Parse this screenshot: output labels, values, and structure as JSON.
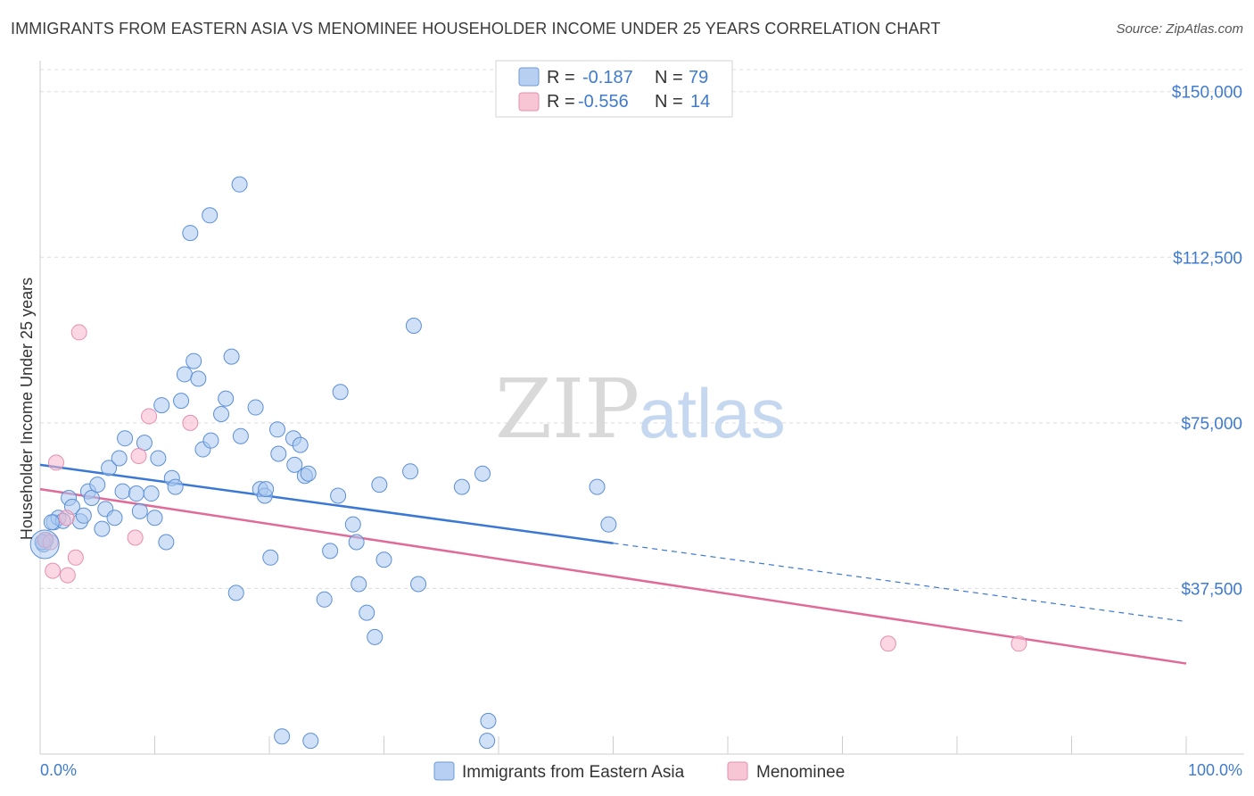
{
  "title": "IMMIGRANTS FROM EASTERN ASIA VS MENOMINEE HOUSEHOLDER INCOME UNDER 25 YEARS CORRELATION CHART",
  "source": "Source: ZipAtlas.com",
  "watermark": {
    "zip": "ZIP",
    "atlas": "atlas"
  },
  "colors": {
    "blue": "#3a78d4",
    "blue_fill": "#a9c8f0",
    "pink": "#e06a98",
    "pink_fill": "#f6b6cb",
    "axis_text": "#3f7bd0",
    "grid": "#dddddd"
  },
  "legend": {
    "rows": [
      {
        "r_label": "R =",
        "r_value": "-0.187",
        "n_label": "N =",
        "n_value": "79"
      },
      {
        "r_label": "R =",
        "r_value": "-0.556",
        "n_label": "N =",
        "n_value": "14"
      }
    ]
  },
  "bottom_legend": [
    "Immigrants from Eastern Asia",
    "Menominee"
  ],
  "chart_data": {
    "type": "scatter",
    "title": "IMMIGRANTS FROM EASTERN ASIA VS MENOMINEE HOUSEHOLDER INCOME UNDER 25 YEARS CORRELATION CHART",
    "xlabel": "",
    "ylabel": "Householder Income Under 25 years",
    "xlim": [
      0,
      100
    ],
    "ylim": [
      0,
      155000
    ],
    "x_tick_labels": [
      "0.0%",
      "100.0%"
    ],
    "y_ticks": [
      37500,
      75000,
      112500,
      150000
    ],
    "y_tick_labels": [
      "$37,500",
      "$75,000",
      "$112,500",
      "$150,000"
    ],
    "grid": true,
    "legend_position": "top-center",
    "series": [
      {
        "name": "Immigrants from Eastern Asia",
        "color": "#3a78d4",
        "points": [
          [
            0.3,
            47500
          ],
          [
            0.5,
            48500
          ],
          [
            1.2,
            52500
          ],
          [
            1.6,
            53500
          ],
          [
            2.0,
            52800
          ],
          [
            2.5,
            58000
          ],
          [
            2.8,
            56000
          ],
          [
            3.5,
            52700
          ],
          [
            3.8,
            54000
          ],
          [
            4.2,
            59500
          ],
          [
            4.5,
            58000
          ],
          [
            5.0,
            61000
          ],
          [
            5.4,
            51000
          ],
          [
            5.7,
            55500
          ],
          [
            6.0,
            64800
          ],
          [
            6.5,
            53500
          ],
          [
            6.9,
            67000
          ],
          [
            7.4,
            71500
          ],
          [
            7.2,
            59500
          ],
          [
            8.4,
            59000
          ],
          [
            8.7,
            55000
          ],
          [
            9.1,
            70500
          ],
          [
            9.7,
            59000
          ],
          [
            10.0,
            53500
          ],
          [
            10.3,
            67000
          ],
          [
            10.6,
            79000
          ],
          [
            11.0,
            48000
          ],
          [
            11.5,
            62500
          ],
          [
            11.8,
            60500
          ],
          [
            12.3,
            80000
          ],
          [
            12.6,
            86000
          ],
          [
            13.1,
            118000
          ],
          [
            13.4,
            89000
          ],
          [
            13.8,
            85000
          ],
          [
            14.2,
            69000
          ],
          [
            14.8,
            122000
          ],
          [
            14.9,
            71000
          ],
          [
            15.8,
            77000
          ],
          [
            16.2,
            80500
          ],
          [
            16.7,
            90000
          ],
          [
            17.1,
            36500
          ],
          [
            17.4,
            129000
          ],
          [
            17.5,
            72000
          ],
          [
            18.8,
            78500
          ],
          [
            19.2,
            60000
          ],
          [
            19.6,
            58500
          ],
          [
            19.7,
            60000
          ],
          [
            20.1,
            44500
          ],
          [
            20.7,
            73500
          ],
          [
            20.8,
            68000
          ],
          [
            21.1,
            4000
          ],
          [
            22.1,
            71500
          ],
          [
            22.2,
            65500
          ],
          [
            22.7,
            70000
          ],
          [
            23.1,
            63000
          ],
          [
            23.4,
            63500
          ],
          [
            23.6,
            3000
          ],
          [
            24.8,
            35000
          ],
          [
            25.3,
            46000
          ],
          [
            26.0,
            58500
          ],
          [
            26.2,
            82000
          ],
          [
            27.3,
            52000
          ],
          [
            27.6,
            48000
          ],
          [
            27.8,
            38500
          ],
          [
            28.5,
            32000
          ],
          [
            29.2,
            26500
          ],
          [
            29.6,
            61000
          ],
          [
            30.0,
            44000
          ],
          [
            32.3,
            64000
          ],
          [
            32.6,
            97000
          ],
          [
            33.0,
            38500
          ],
          [
            36.8,
            60500
          ],
          [
            38.6,
            63500
          ],
          [
            39.1,
            7500
          ],
          [
            39.0,
            3000
          ],
          [
            48.6,
            60500
          ],
          [
            49.6,
            52000
          ],
          [
            0.2,
            48000
          ],
          [
            1.0,
            52500
          ]
        ]
      },
      {
        "name": "Menominee",
        "color": "#e06a98",
        "points": [
          [
            0.4,
            48500
          ],
          [
            1.1,
            41500
          ],
          [
            1.4,
            66000
          ],
          [
            2.3,
            53500
          ],
          [
            2.4,
            40500
          ],
          [
            3.1,
            44500
          ],
          [
            3.4,
            95500
          ],
          [
            8.3,
            49000
          ],
          [
            8.6,
            67500
          ],
          [
            9.5,
            76500
          ],
          [
            13.1,
            75000
          ],
          [
            0.9,
            48000
          ],
          [
            74.0,
            25000
          ],
          [
            85.4,
            25000
          ]
        ]
      }
    ],
    "trend_lines": [
      {
        "series": "Immigrants from Eastern Asia",
        "x": [
          0,
          100
        ],
        "y": [
          65500,
          30000
        ],
        "solid_until_x": 50
      },
      {
        "series": "Menominee",
        "x": [
          0,
          100
        ],
        "y": [
          60000,
          20500
        ]
      }
    ]
  }
}
